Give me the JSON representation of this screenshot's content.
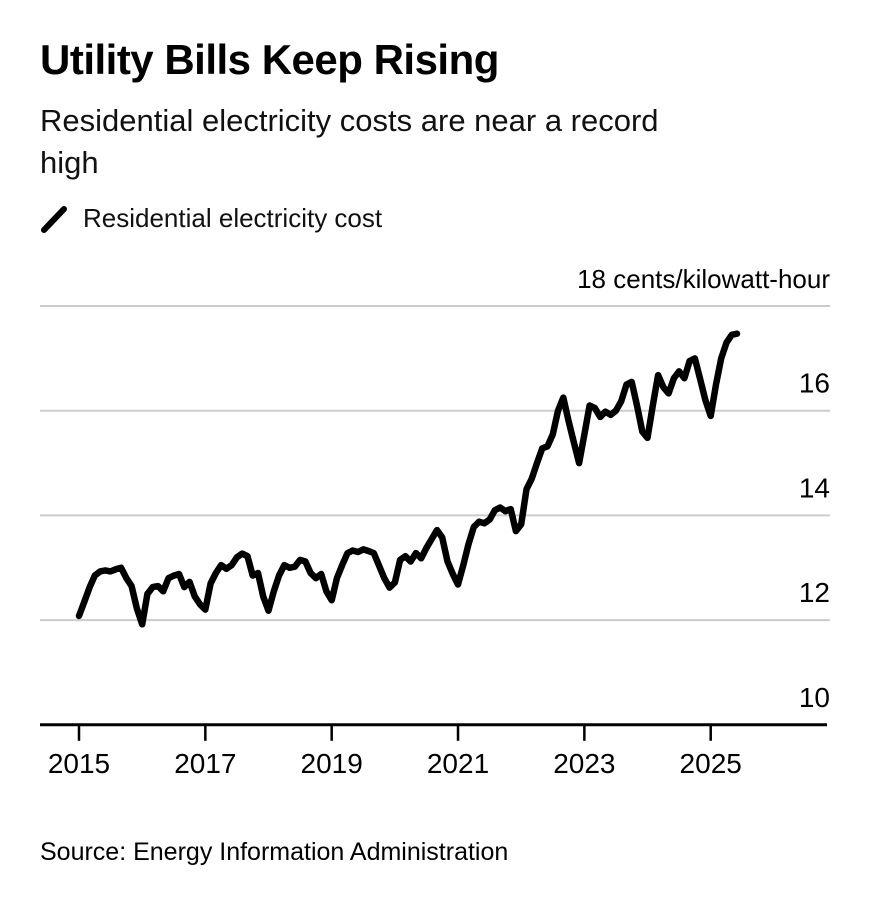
{
  "header": {
    "title": "Utility Bills Keep Rising",
    "subtitle": "Residential electricity costs are near a record high"
  },
  "legend": {
    "items": [
      {
        "label": "Residential electricity cost",
        "marker": "diagonal-line-icon",
        "color": "#000000"
      }
    ]
  },
  "footer": {
    "source": "Source: Energy Information Administration"
  },
  "chart_data": {
    "type": "line",
    "title": "Utility Bills Keep Rising",
    "subtitle": "Residential electricity costs are near a record high",
    "unit_top_label": {
      "value": 18,
      "label": "18 cents/kilowatt-hour"
    },
    "y_axis": {
      "gridline_values": [
        18,
        16,
        14,
        12
      ],
      "tick_labels": [
        {
          "value": 16,
          "label": "16"
        },
        {
          "value": 14,
          "label": "14"
        },
        {
          "value": 12,
          "label": "12"
        },
        {
          "value": 10,
          "label": "10"
        }
      ],
      "ylim": [
        10,
        18
      ],
      "grid": "horizontal"
    },
    "x_axis": {
      "ticks": [
        {
          "value": 2015,
          "label": "2015"
        },
        {
          "value": 2017,
          "label": "2017"
        },
        {
          "value": 2019,
          "label": "2019"
        },
        {
          "value": 2021,
          "label": "2021"
        },
        {
          "value": 2023,
          "label": "2023"
        },
        {
          "value": 2025,
          "label": "2025"
        }
      ],
      "xlim": [
        2014.4,
        2026.85
      ]
    },
    "legend_position": "top-left",
    "colors": {
      "line": "#000000",
      "grid": "#cccccc",
      "axis": "#000000",
      "text": "#000000"
    },
    "series": [
      {
        "name": "Residential electricity cost",
        "unit": "cents/kilowatt-hour",
        "frequency": "monthly",
        "start_month": "2015-01",
        "end_month": "2025-06",
        "values": [
          12.08,
          12.35,
          12.62,
          12.85,
          12.93,
          12.95,
          12.93,
          12.97,
          13.0,
          12.8,
          12.65,
          12.22,
          11.92,
          12.5,
          12.63,
          12.65,
          12.55,
          12.8,
          12.85,
          12.88,
          12.63,
          12.73,
          12.45,
          12.3,
          12.2,
          12.7,
          12.9,
          13.05,
          12.98,
          13.05,
          13.2,
          13.27,
          13.22,
          12.85,
          12.9,
          12.45,
          12.18,
          12.55,
          12.85,
          13.05,
          13.0,
          13.02,
          13.15,
          13.12,
          12.9,
          12.8,
          12.88,
          12.55,
          12.38,
          12.8,
          13.05,
          13.28,
          13.33,
          13.3,
          13.35,
          13.32,
          13.28,
          13.04,
          12.8,
          12.62,
          12.72,
          13.15,
          13.22,
          13.12,
          13.28,
          13.18,
          13.38,
          13.55,
          13.72,
          13.58,
          13.12,
          12.88,
          12.68,
          13.05,
          13.45,
          13.78,
          13.88,
          13.85,
          13.92,
          14.1,
          14.15,
          14.08,
          14.12,
          13.7,
          13.83,
          14.5,
          14.7,
          15.0,
          15.28,
          15.32,
          15.55,
          16.0,
          16.25,
          15.8,
          15.4,
          15.0,
          15.55,
          16.1,
          16.05,
          15.88,
          15.98,
          15.92,
          16.0,
          16.18,
          16.5,
          16.55,
          16.1,
          15.6,
          15.48,
          16.1,
          16.68,
          16.45,
          16.33,
          16.62,
          16.75,
          16.62,
          16.95,
          17.0,
          16.6,
          16.2,
          15.9,
          16.5,
          17.0,
          17.3,
          17.45,
          17.47
        ]
      }
    ]
  }
}
